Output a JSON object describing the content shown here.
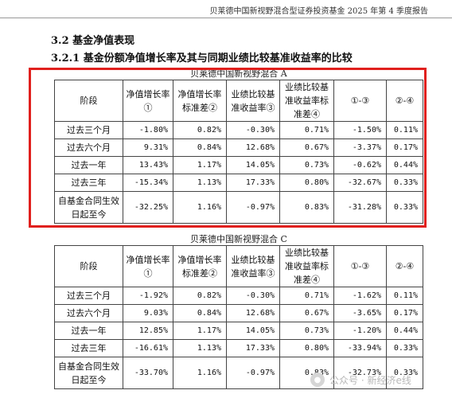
{
  "header": {
    "report_title": "贝莱德中国新视野混合型证券投资基金 2025 年第 4 季度报告"
  },
  "section": {
    "heading": "3.2 基金净值表现",
    "subheading": "3.2.1 基金份额净值增长率及其与同期业绩比较基准收益率的比较"
  },
  "columns": [
    "阶段",
    "净值增长率①",
    "净值增长率标准差②",
    "业绩比较基准收益率③",
    "业绩比较基准收益率标准差④",
    "①-③",
    "②-④"
  ],
  "tables": [
    {
      "caption": "贝莱德中国新视野混合 A",
      "rows": [
        [
          "过去三个月",
          "-1.80%",
          "0.82%",
          "-0.30%",
          "0.71%",
          "-1.50%",
          "0.11%"
        ],
        [
          "过去六个月",
          "9.31%",
          "0.84%",
          "12.68%",
          "0.67%",
          "-3.37%",
          "0.17%"
        ],
        [
          "过去一年",
          "13.43%",
          "1.17%",
          "14.05%",
          "0.73%",
          "-0.62%",
          "0.44%"
        ],
        [
          "过去三年",
          "-15.34%",
          "1.13%",
          "17.33%",
          "0.80%",
          "-32.67%",
          "0.33%"
        ],
        [
          "自基金合同生效日起至今",
          "-32.25%",
          "1.16%",
          "-0.97%",
          "0.83%",
          "-31.28%",
          "0.33%"
        ]
      ]
    },
    {
      "caption": "贝莱德中国新视野混合 C",
      "rows": [
        [
          "过去三个月",
          "-1.92%",
          "0.82%",
          "-0.30%",
          "0.71%",
          "-1.62%",
          "0.11%"
        ],
        [
          "过去六个月",
          "9.03%",
          "0.84%",
          "12.68%",
          "0.67%",
          "-3.65%",
          "0.17%"
        ],
        [
          "过去一年",
          "12.85%",
          "1.17%",
          "14.05%",
          "0.73%",
          "-1.20%",
          "0.44%"
        ],
        [
          "过去三年",
          "-16.61%",
          "1.13%",
          "17.33%",
          "0.80%",
          "-33.94%",
          "0.33%"
        ],
        [
          "自基金合同生效日起至今",
          "-33.70%",
          "1.16%",
          "-0.97%",
          "0.83%",
          "-32.73%",
          "0.33%"
        ]
      ]
    }
  ],
  "highlight": {
    "color": "#e0201d"
  },
  "watermark": {
    "icon": "wechat-icon",
    "text": "公众号 · 新经济e线"
  }
}
